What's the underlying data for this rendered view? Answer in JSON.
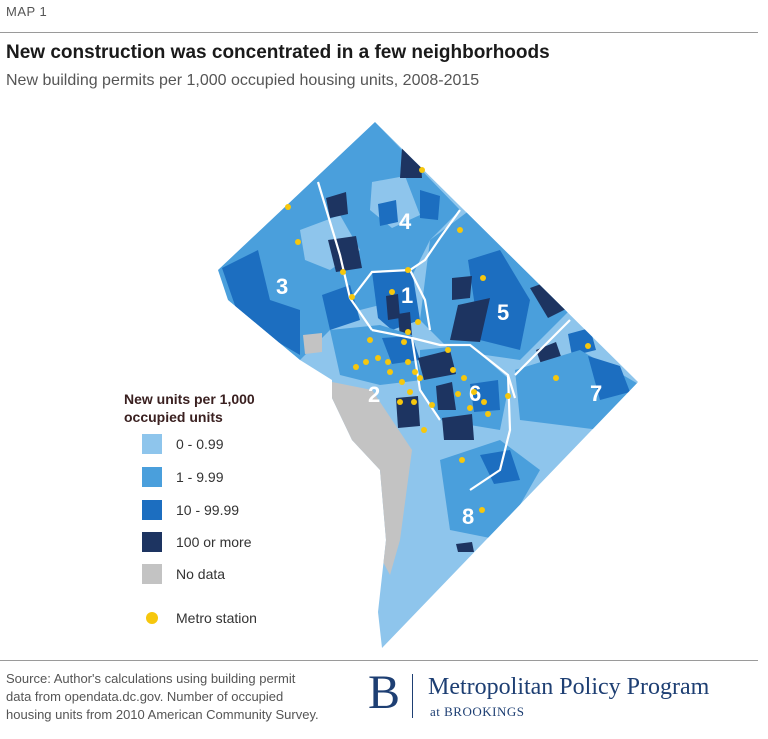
{
  "header": {
    "map_label": "MAP 1",
    "title": "New construction was concentrated in a few neighborhoods",
    "subtitle": "New building permits per 1,000 occupied housing units, 2008-2015"
  },
  "colors": {
    "bin_0": "#8ec5ec",
    "bin_1": "#4a9fdc",
    "bin_2": "#1c6ec0",
    "bin_3": "#1d3461",
    "no_data": "#c3c3c3",
    "metro": "#f6c70d"
  },
  "legend": {
    "title": "New units per 1,000 occupied units",
    "bins": [
      {
        "label": "0 - 0.99"
      },
      {
        "label": "1 - 9.99"
      },
      {
        "label": "10 - 99.99"
      },
      {
        "label": "100 or more"
      },
      {
        "label": "No data"
      }
    ],
    "metro_label": "Metro station"
  },
  "wards": [
    "1",
    "2",
    "3",
    "4",
    "5",
    "6",
    "7",
    "8"
  ],
  "footer": {
    "source_lines": [
      "Source: Author's calculations using building permit",
      "data from opendata.dc.gov. Number of occupied",
      "housing units from 2010 American Community Survey."
    ],
    "logo_letter": "B",
    "logo_main": "Metropolitan Policy Program",
    "logo_sub": "at BROOKINGS"
  }
}
